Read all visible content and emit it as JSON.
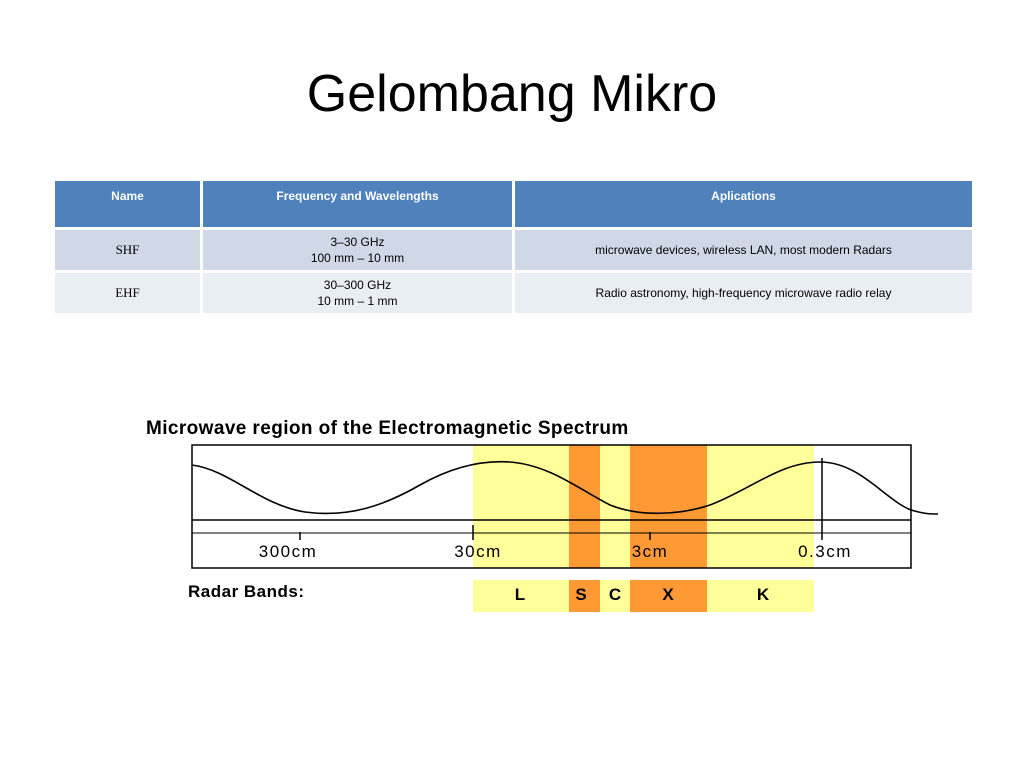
{
  "slide": {
    "title": "Gelombang Mikro"
  },
  "table": {
    "headers": {
      "name": "Name",
      "frequency": "Frequency and Wavelengths",
      "applications": "Aplications"
    },
    "rows": [
      {
        "name": "SHF",
        "frequency": "3–30 GHz",
        "wavelength": "100 mm – 10 mm",
        "applications": "microwave devices, wireless LAN, most modern Radars"
      },
      {
        "name": "EHF",
        "frequency": "30–300 GHz",
        "wavelength": "10 mm – 1 mm",
        "applications": "Radio astronomy, high-frequency microwave radio relay"
      }
    ]
  },
  "figure": {
    "title": "Microwave region of the Electromagnetic Spectrum",
    "scale_labels": [
      "300cm",
      "30cm",
      "3cm",
      "0.3cm"
    ],
    "radar_label": "Radar Bands:",
    "bands": [
      {
        "label": "L",
        "color": "#ffff99"
      },
      {
        "label": "S",
        "color": "#ff9933"
      },
      {
        "label": "C",
        "color": "#ffff99"
      },
      {
        "label": "X",
        "color": "#ff9933"
      },
      {
        "label": "K",
        "color": "#ffff99"
      }
    ]
  }
}
